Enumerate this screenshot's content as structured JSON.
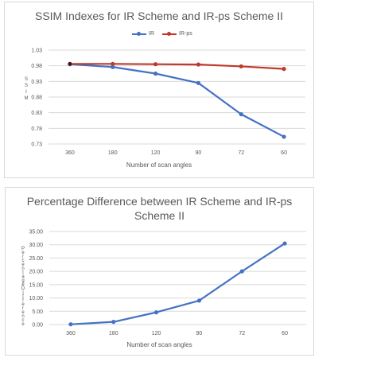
{
  "colors": {
    "ir": "#4472c4",
    "irps": "#c0392b",
    "grid": "#d9d9d9",
    "text": "#595959"
  },
  "chart_data": [
    {
      "type": "line",
      "title": "SSIM Indexes for IR Scheme and IR-ps Scheme II",
      "xlabel": "Number of scan angles",
      "ylabel": "SSIM",
      "categories": [
        "360",
        "180",
        "120",
        "90",
        "72",
        "60"
      ],
      "yticks": [
        "0.73",
        "0.78",
        "0.83",
        "0.88",
        "0.93",
        "0.98",
        "1.03"
      ],
      "ylim": [
        0.73,
        1.03
      ],
      "grid": true,
      "legend_position": "top",
      "series": [
        {
          "name": "IR",
          "color": "#4472c4",
          "values": [
            0.985,
            0.976,
            0.955,
            0.925,
            0.825,
            0.753
          ]
        },
        {
          "name": "IR-ps",
          "color": "#c0392b",
          "values": [
            0.986,
            0.986,
            0.985,
            0.984,
            0.978,
            0.97
          ]
        }
      ]
    },
    {
      "type": "line",
      "title": "Percentage Difference between IR Scheme and IR-ps Scheme II",
      "title_line1": "Percentage Difference between IR Scheme and IR-ps",
      "title_line2": "Scheme II",
      "xlabel": "Number of scan angles",
      "ylabel": "Percentage Difference",
      "categories": [
        "360",
        "180",
        "120",
        "90",
        "72",
        "60"
      ],
      "yticks": [
        "0.00",
        "5.00",
        "10.00",
        "15.00",
        "20.00",
        "25.00",
        "30.00",
        "35.00"
      ],
      "ylim": [
        0,
        35
      ],
      "grid": true,
      "series": [
        {
          "color": "#4472c4",
          "values": [
            0.1,
            1.0,
            4.6,
            9.0,
            20.0,
            30.5
          ]
        }
      ]
    }
  ]
}
